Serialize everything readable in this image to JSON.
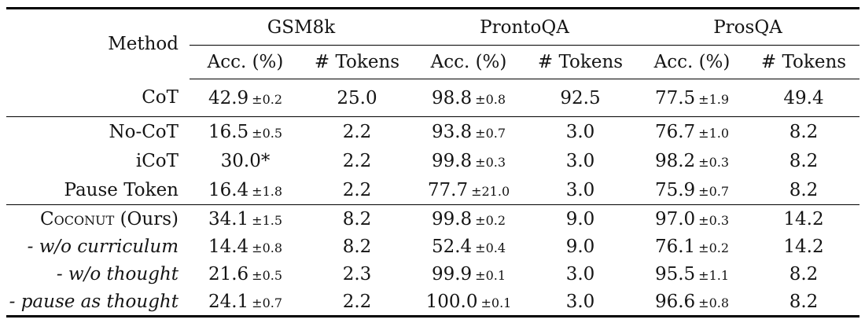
{
  "page": {
    "background": "#ffffff",
    "text_color": "#141414",
    "rule_color": "#000000"
  },
  "table": {
    "method_header": "Method",
    "groups": [
      {
        "label": "GSM8k"
      },
      {
        "label": "ProntoQA"
      },
      {
        "label": "ProsQA"
      }
    ],
    "sub_headers": [
      "Acc. (%)",
      "# Tokens",
      "Acc. (%)",
      "# Tokens",
      "Acc. (%)",
      "# Tokens"
    ],
    "pm_prefix": "±",
    "sections": [
      {
        "rows": [
          {
            "method": [
              {
                "t": "CoT"
              }
            ],
            "italic": false,
            "cells": [
              {
                "v": "42.9",
                "pm": "0.2"
              },
              {
                "v": "25.0"
              },
              {
                "v": "98.8",
                "pm": "0.8"
              },
              {
                "v": "92.5"
              },
              {
                "v": "77.5",
                "pm": "1.9"
              },
              {
                "v": "49.4"
              }
            ]
          }
        ]
      },
      {
        "rows": [
          {
            "method": [
              {
                "t": "No-CoT"
              }
            ],
            "italic": false,
            "cells": [
              {
                "v": "16.5",
                "pm": "0.5"
              },
              {
                "v": "2.2"
              },
              {
                "v": "93.8",
                "pm": "0.7"
              },
              {
                "v": "3.0"
              },
              {
                "v": "76.7",
                "pm": "1.0"
              },
              {
                "v": "8.2"
              }
            ]
          },
          {
            "method": [
              {
                "t": "iCoT"
              }
            ],
            "italic": false,
            "cells": [
              {
                "v": "30.0*"
              },
              {
                "v": "2.2"
              },
              {
                "v": "99.8",
                "pm": "0.3"
              },
              {
                "v": "3.0"
              },
              {
                "v": "98.2",
                "pm": "0.3"
              },
              {
                "v": "8.2"
              }
            ]
          },
          {
            "method": [
              {
                "t": "Pause Token"
              }
            ],
            "italic": false,
            "cells": [
              {
                "v": "16.4",
                "pm": "1.8"
              },
              {
                "v": "2.2"
              },
              {
                "v": "77.7",
                "pm": "21.0"
              },
              {
                "v": "3.0"
              },
              {
                "v": "75.9",
                "pm": "0.7"
              },
              {
                "v": "8.2"
              }
            ]
          }
        ]
      },
      {
        "rows": [
          {
            "method": [
              {
                "t": "Coconut",
                "sc": true
              },
              {
                "t": " (Ours)"
              }
            ],
            "italic": false,
            "cells": [
              {
                "v": "34.1",
                "pm": "1.5"
              },
              {
                "v": "8.2"
              },
              {
                "v": "99.8",
                "pm": "0.2"
              },
              {
                "v": "9.0"
              },
              {
                "v": "97.0",
                "pm": "0.3"
              },
              {
                "v": "14.2"
              }
            ]
          },
          {
            "method": [
              {
                "t": "- w/o curriculum"
              }
            ],
            "italic": true,
            "cells": [
              {
                "v": "14.4",
                "pm": "0.8"
              },
              {
                "v": "8.2"
              },
              {
                "v": "52.4",
                "pm": "0.4"
              },
              {
                "v": "9.0"
              },
              {
                "v": "76.1",
                "pm": "0.2"
              },
              {
                "v": "14.2"
              }
            ]
          },
          {
            "method": [
              {
                "t": "- w/o thought"
              }
            ],
            "italic": true,
            "cells": [
              {
                "v": "21.6",
                "pm": "0.5"
              },
              {
                "v": "2.3"
              },
              {
                "v": "99.9",
                "pm": "0.1"
              },
              {
                "v": "3.0"
              },
              {
                "v": "95.5",
                "pm": "1.1"
              },
              {
                "v": "8.2"
              }
            ]
          },
          {
            "method": [
              {
                "t": "- pause as thought"
              }
            ],
            "italic": true,
            "cells": [
              {
                "v": "24.1",
                "pm": "0.7"
              },
              {
                "v": "2.2"
              },
              {
                "v": "100.0",
                "pm": "0.1"
              },
              {
                "v": "3.0"
              },
              {
                "v": "96.6",
                "pm": "0.8"
              },
              {
                "v": "8.2"
              }
            ]
          }
        ]
      }
    ]
  }
}
